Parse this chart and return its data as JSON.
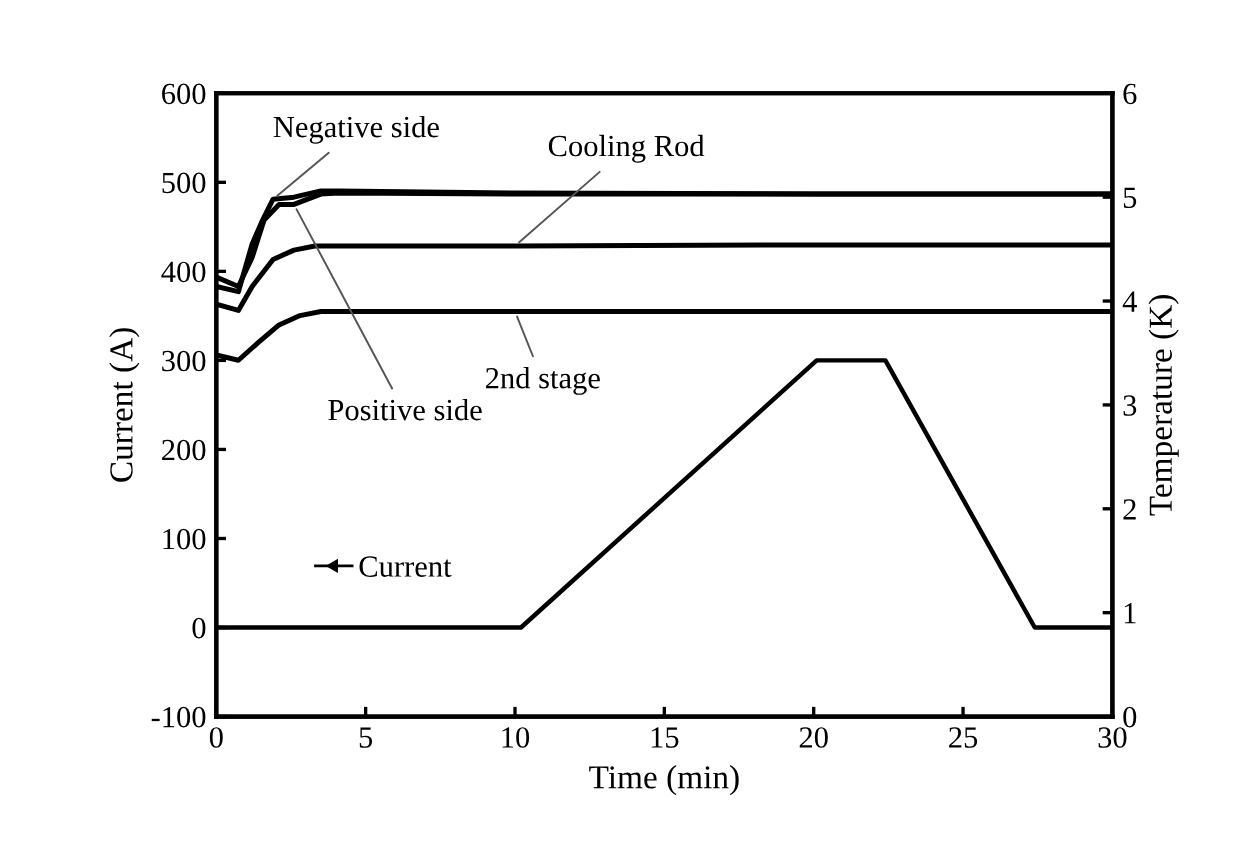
{
  "chart_data": {
    "type": "line",
    "xlabel": "Time (min)",
    "ylabel": "Current (A)",
    "y2label": "Temperature (K)",
    "xlim": [
      0,
      30
    ],
    "xticks": [
      0,
      5,
      10,
      15,
      20,
      25,
      30
    ],
    "ylim": [
      -100,
      600
    ],
    "yticks": [
      -100,
      0,
      100,
      200,
      300,
      400,
      500,
      600
    ],
    "y2lim": [
      0,
      6
    ],
    "y2ticks": [
      0,
      1,
      2,
      3,
      4,
      5,
      6
    ],
    "grid": false,
    "legend": "bottom left",
    "series": [
      {
        "name": "Current",
        "color": "#000000",
        "x": [
          0,
          10.2,
          20.1,
          22.4,
          27.4,
          30
        ],
        "values": [
          0,
          0,
          300,
          300,
          0,
          0
        ]
      },
      {
        "name": "Negative side",
        "color": "#000000",
        "axis": "y2",
        "x": [
          0,
          0.74,
          1.2,
          1.55,
          1.9,
          2.6,
          3.5,
          4.1,
          10,
          20,
          30
        ],
        "values": [
          4.14,
          4.09,
          4.55,
          4.78,
          4.98,
          5.0,
          5.06,
          5.06,
          5.04,
          5.03,
          5.03
        ]
      },
      {
        "name": "Positive side",
        "color": "#000000",
        "axis": "y2",
        "x": [
          0,
          0.74,
          1.2,
          1.6,
          2.1,
          2.6,
          3.5,
          4.1,
          10,
          20,
          30
        ],
        "values": [
          4.23,
          4.14,
          4.42,
          4.78,
          4.93,
          4.93,
          5.03,
          5.04,
          5.03,
          5.03,
          5.03
        ]
      },
      {
        "name": "Cooling Rod",
        "color": "#000000",
        "axis": "y2",
        "x": [
          0,
          0.74,
          1.2,
          1.9,
          2.6,
          3.3,
          10,
          20,
          30
        ],
        "values": [
          3.97,
          3.91,
          4.14,
          4.4,
          4.49,
          4.53,
          4.53,
          4.54,
          4.54
        ]
      },
      {
        "name": "2nd stage",
        "color": "#000000",
        "axis": "y2",
        "x": [
          0,
          0.74,
          1.4,
          2.1,
          2.8,
          3.5,
          10,
          20,
          30
        ],
        "values": [
          3.48,
          3.43,
          3.6,
          3.77,
          3.86,
          3.9,
          3.9,
          3.9,
          3.9
        ]
      }
    ]
  }
}
